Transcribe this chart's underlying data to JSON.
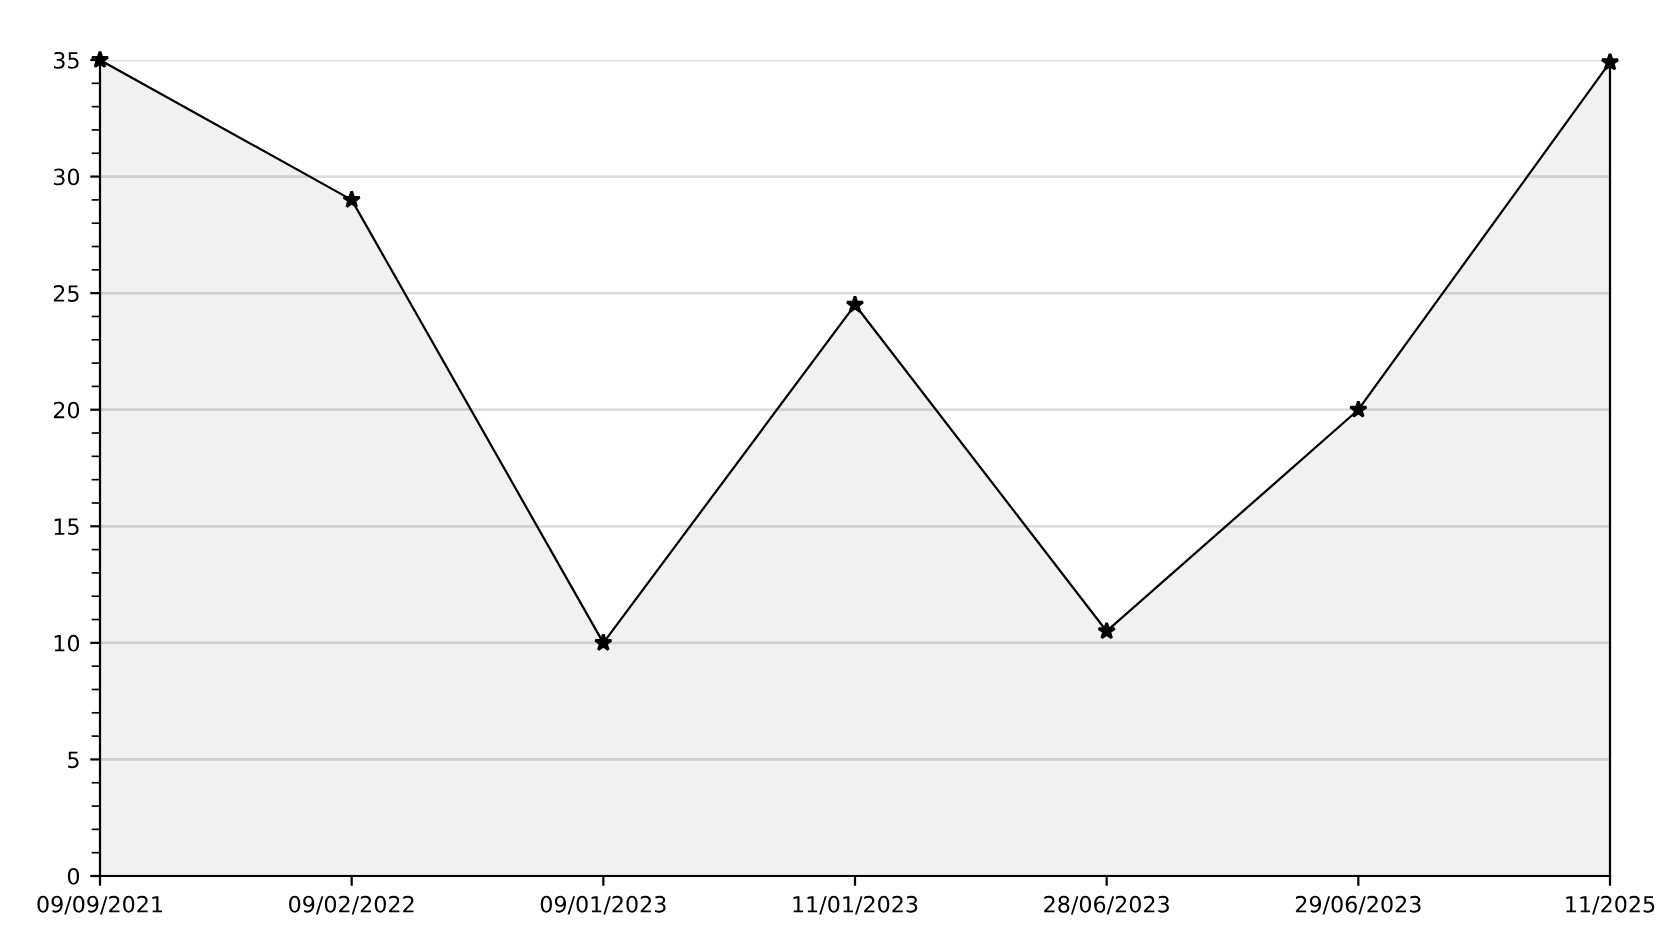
{
  "chart_data": {
    "type": "area",
    "categories": [
      "09/09/2021",
      "09/02/2022",
      "09/01/2023",
      "11/01/2023",
      "28/06/2023",
      "29/06/2023",
      "11/2025"
    ],
    "series": [
      {
        "color": "#000000",
        "values": [
          35,
          29,
          10,
          24.5,
          10.5,
          20,
          34.9
        ]
      }
    ],
    "ylim": [
      0,
      35
    ],
    "yticks": [
      0,
      5,
      10,
      15,
      20,
      25,
      30,
      35
    ],
    "grid": "y",
    "marker": "star",
    "line_style": "solid",
    "legend": false
  }
}
